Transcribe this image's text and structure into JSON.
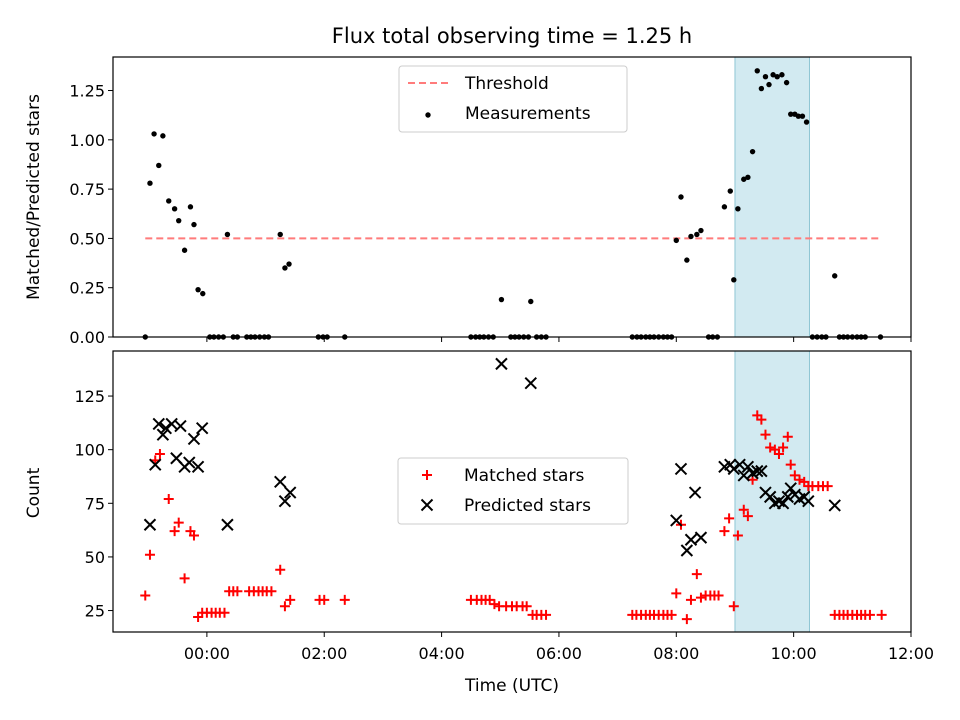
{
  "chart_data": [
    {
      "type": "scatter",
      "title": "Flux total observing time = 1.25 h",
      "xlabel": "",
      "ylabel": "Matched/Predicted stars",
      "xlim": [
        -1.6,
        12.0
      ],
      "ylim": [
        0,
        1.42
      ],
      "yticks": [
        0.0,
        0.25,
        0.5,
        0.75,
        1.0,
        1.25
      ],
      "ytick_labels": [
        "0.00",
        "0.25",
        "0.50",
        "0.75",
        "1.00",
        "1.25"
      ],
      "xticks": [
        0,
        2,
        4,
        6,
        8,
        10,
        12
      ],
      "shaded_region": [
        9.0,
        10.27
      ],
      "legend": {
        "position": "top-center",
        "entries": [
          "Threshold",
          "Measurements"
        ]
      },
      "series": [
        {
          "name": "Threshold",
          "kind": "dashed-line",
          "color": "#ff7b7b",
          "points": [
            [
              -1.05,
              0.5
            ],
            [
              11.45,
              0.5
            ]
          ]
        },
        {
          "name": "Measurements",
          "kind": "dot",
          "color": "#000000",
          "points": [
            [
              -1.05,
              0.0
            ],
            [
              -0.97,
              0.78
            ],
            [
              -0.9,
              1.03
            ],
            [
              -0.82,
              0.87
            ],
            [
              -0.75,
              1.02
            ],
            [
              -0.65,
              0.69
            ],
            [
              -0.55,
              0.65
            ],
            [
              -0.48,
              0.59
            ],
            [
              -0.38,
              0.44
            ],
            [
              -0.28,
              0.66
            ],
            [
              -0.22,
              0.57
            ],
            [
              -0.15,
              0.24
            ],
            [
              -0.07,
              0.22
            ],
            [
              0.05,
              0.0
            ],
            [
              0.12,
              0.0
            ],
            [
              0.2,
              0.0
            ],
            [
              0.28,
              0.0
            ],
            [
              0.35,
              0.52
            ],
            [
              0.45,
              0.0
            ],
            [
              0.52,
              0.0
            ],
            [
              0.68,
              0.0
            ],
            [
              0.75,
              0.0
            ],
            [
              0.82,
              0.0
            ],
            [
              0.9,
              0.0
            ],
            [
              0.98,
              0.0
            ],
            [
              1.05,
              0.0
            ],
            [
              1.25,
              0.52
            ],
            [
              1.33,
              0.35
            ],
            [
              1.4,
              0.37
            ],
            [
              1.9,
              0.0
            ],
            [
              1.98,
              0.0
            ],
            [
              2.05,
              0.0
            ],
            [
              2.35,
              0.0
            ],
            [
              4.5,
              0.0
            ],
            [
              4.58,
              0.0
            ],
            [
              4.65,
              0.0
            ],
            [
              4.72,
              0.0
            ],
            [
              4.8,
              0.0
            ],
            [
              4.88,
              0.0
            ],
            [
              5.02,
              0.19
            ],
            [
              5.18,
              0.0
            ],
            [
              5.25,
              0.0
            ],
            [
              5.32,
              0.0
            ],
            [
              5.4,
              0.0
            ],
            [
              5.48,
              0.0
            ],
            [
              5.52,
              0.18
            ],
            [
              5.62,
              0.0
            ],
            [
              5.7,
              0.0
            ],
            [
              5.78,
              0.0
            ],
            [
              7.25,
              0.0
            ],
            [
              7.33,
              0.0
            ],
            [
              7.4,
              0.0
            ],
            [
              7.48,
              0.0
            ],
            [
              7.55,
              0.0
            ],
            [
              7.62,
              0.0
            ],
            [
              7.7,
              0.0
            ],
            [
              7.78,
              0.0
            ],
            [
              7.85,
              0.0
            ],
            [
              7.92,
              0.0
            ],
            [
              8.0,
              0.49
            ],
            [
              8.08,
              0.71
            ],
            [
              8.18,
              0.39
            ],
            [
              8.25,
              0.51
            ],
            [
              8.35,
              0.52
            ],
            [
              8.42,
              0.54
            ],
            [
              8.55,
              0.0
            ],
            [
              8.62,
              0.0
            ],
            [
              8.7,
              0.0
            ],
            [
              8.82,
              0.66
            ],
            [
              8.92,
              0.74
            ],
            [
              8.98,
              0.29
            ],
            [
              9.05,
              0.65
            ],
            [
              9.15,
              0.8
            ],
            [
              9.22,
              0.81
            ],
            [
              9.3,
              0.94
            ],
            [
              9.38,
              1.35
            ],
            [
              9.45,
              1.26
            ],
            [
              9.52,
              1.32
            ],
            [
              9.58,
              1.28
            ],
            [
              9.65,
              1.33
            ],
            [
              9.72,
              1.32
            ],
            [
              9.8,
              1.33
            ],
            [
              9.88,
              1.29
            ],
            [
              9.95,
              1.13
            ],
            [
              10.02,
              1.13
            ],
            [
              10.08,
              1.12
            ],
            [
              10.15,
              1.12
            ],
            [
              10.22,
              1.09
            ],
            [
              10.32,
              0.0
            ],
            [
              10.4,
              0.0
            ],
            [
              10.48,
              0.0
            ],
            [
              10.55,
              0.0
            ],
            [
              10.7,
              0.31
            ],
            [
              10.78,
              0.0
            ],
            [
              10.85,
              0.0
            ],
            [
              10.92,
              0.0
            ],
            [
              11.0,
              0.0
            ],
            [
              11.08,
              0.0
            ],
            [
              11.15,
              0.0
            ],
            [
              11.22,
              0.0
            ],
            [
              11.48,
              0.0
            ]
          ]
        }
      ]
    },
    {
      "type": "scatter",
      "title": "",
      "xlabel": "Time (UTC)",
      "ylabel": "Count",
      "xlim": [
        -1.6,
        12.0
      ],
      "ylim": [
        15,
        146
      ],
      "yticks": [
        25,
        50,
        75,
        100,
        125
      ],
      "ytick_labels": [
        "25",
        "50",
        "75",
        "100",
        "125"
      ],
      "xticks": [
        0,
        2,
        4,
        6,
        8,
        10,
        12
      ],
      "xtick_labels": [
        "00:00",
        "02:00",
        "04:00",
        "06:00",
        "08:00",
        "10:00",
        "12:00"
      ],
      "shaded_region": [
        9.0,
        10.27
      ],
      "legend": {
        "position": "center",
        "entries": [
          "Matched stars",
          "Predicted stars"
        ]
      },
      "series": [
        {
          "name": "Matched stars",
          "marker": "plus",
          "color": "#ff0000",
          "points": [
            [
              -1.05,
              32
            ],
            [
              -0.97,
              51
            ],
            [
              -0.88,
              95
            ],
            [
              -0.8,
              98
            ],
            [
              -0.65,
              77
            ],
            [
              -0.55,
              62
            ],
            [
              -0.48,
              66
            ],
            [
              -0.38,
              40
            ],
            [
              -0.28,
              62
            ],
            [
              -0.22,
              60
            ],
            [
              -0.15,
              22
            ],
            [
              -0.08,
              24
            ],
            [
              0.0,
              24
            ],
            [
              0.08,
              24
            ],
            [
              0.15,
              24
            ],
            [
              0.22,
              24
            ],
            [
              0.3,
              24
            ],
            [
              0.38,
              34
            ],
            [
              0.45,
              34
            ],
            [
              0.52,
              34
            ],
            [
              0.72,
              34
            ],
            [
              0.8,
              34
            ],
            [
              0.88,
              34
            ],
            [
              0.95,
              34
            ],
            [
              1.02,
              34
            ],
            [
              1.1,
              34
            ],
            [
              1.25,
              44
            ],
            [
              1.33,
              27
            ],
            [
              1.42,
              30
            ],
            [
              1.92,
              30
            ],
            [
              2.0,
              30
            ],
            [
              2.35,
              30
            ],
            [
              4.5,
              30
            ],
            [
              4.6,
              30
            ],
            [
              4.68,
              30
            ],
            [
              4.75,
              30
            ],
            [
              4.82,
              30
            ],
            [
              4.9,
              28
            ],
            [
              4.98,
              27
            ],
            [
              5.1,
              27
            ],
            [
              5.2,
              27
            ],
            [
              5.28,
              27
            ],
            [
              5.38,
              27
            ],
            [
              5.45,
              27
            ],
            [
              5.55,
              23
            ],
            [
              5.62,
              23
            ],
            [
              5.7,
              23
            ],
            [
              5.78,
              23
            ],
            [
              7.25,
              23
            ],
            [
              7.32,
              23
            ],
            [
              7.4,
              23
            ],
            [
              7.48,
              23
            ],
            [
              7.55,
              23
            ],
            [
              7.62,
              23
            ],
            [
              7.7,
              23
            ],
            [
              7.78,
              23
            ],
            [
              7.85,
              23
            ],
            [
              7.92,
              23
            ],
            [
              8.0,
              33
            ],
            [
              8.08,
              65
            ],
            [
              8.18,
              21
            ],
            [
              8.25,
              30
            ],
            [
              8.35,
              42
            ],
            [
              8.42,
              31
            ],
            [
              8.5,
              32
            ],
            [
              8.58,
              32
            ],
            [
              8.65,
              32
            ],
            [
              8.72,
              32
            ],
            [
              8.82,
              62
            ],
            [
              8.9,
              68
            ],
            [
              8.98,
              27
            ],
            [
              9.05,
              60
            ],
            [
              9.15,
              72
            ],
            [
              9.22,
              69
            ],
            [
              9.3,
              86
            ],
            [
              9.38,
              116
            ],
            [
              9.45,
              114
            ],
            [
              9.52,
              107
            ],
            [
              9.6,
              101
            ],
            [
              9.68,
              100
            ],
            [
              9.75,
              98
            ],
            [
              9.82,
              101
            ],
            [
              9.9,
              106
            ],
            [
              9.95,
              93
            ],
            [
              10.02,
              88
            ],
            [
              10.1,
              86
            ],
            [
              10.18,
              85
            ],
            [
              10.25,
              83
            ],
            [
              10.32,
              83
            ],
            [
              10.42,
              83
            ],
            [
              10.5,
              83
            ],
            [
              10.58,
              83
            ],
            [
              10.7,
              23
            ],
            [
              10.78,
              23
            ],
            [
              10.85,
              23
            ],
            [
              10.92,
              23
            ],
            [
              11.0,
              23
            ],
            [
              11.08,
              23
            ],
            [
              11.15,
              23
            ],
            [
              11.22,
              23
            ],
            [
              11.3,
              23
            ],
            [
              11.5,
              23
            ]
          ]
        },
        {
          "name": "Predicted stars",
          "marker": "x",
          "color": "#000000",
          "points": [
            [
              -0.97,
              65
            ],
            [
              -0.88,
              93
            ],
            [
              -0.82,
              112
            ],
            [
              -0.75,
              107
            ],
            [
              -0.7,
              110
            ],
            [
              -0.6,
              112
            ],
            [
              -0.52,
              96
            ],
            [
              -0.45,
              111
            ],
            [
              -0.38,
              92
            ],
            [
              -0.3,
              94
            ],
            [
              -0.22,
              105
            ],
            [
              -0.15,
              92
            ],
            [
              -0.08,
              110
            ],
            [
              0.35,
              65
            ],
            [
              1.25,
              85
            ],
            [
              1.33,
              76
            ],
            [
              1.42,
              80
            ],
            [
              5.02,
              140
            ],
            [
              5.52,
              131
            ],
            [
              8.0,
              67
            ],
            [
              8.08,
              91
            ],
            [
              8.18,
              53
            ],
            [
              8.25,
              58
            ],
            [
              8.32,
              80
            ],
            [
              8.42,
              59
            ],
            [
              8.82,
              92
            ],
            [
              8.92,
              93
            ],
            [
              8.98,
              91
            ],
            [
              9.08,
              93
            ],
            [
              9.15,
              88
            ],
            [
              9.22,
              92
            ],
            [
              9.3,
              89
            ],
            [
              9.38,
              90
            ],
            [
              9.45,
              90
            ],
            [
              9.52,
              80
            ],
            [
              9.6,
              78
            ],
            [
              9.68,
              75
            ],
            [
              9.75,
              76
            ],
            [
              9.82,
              75
            ],
            [
              9.9,
              78
            ],
            [
              9.95,
              82
            ],
            [
              10.02,
              79
            ],
            [
              10.1,
              77
            ],
            [
              10.18,
              78
            ],
            [
              10.25,
              76
            ],
            [
              10.7,
              74
            ]
          ]
        }
      ]
    }
  ]
}
